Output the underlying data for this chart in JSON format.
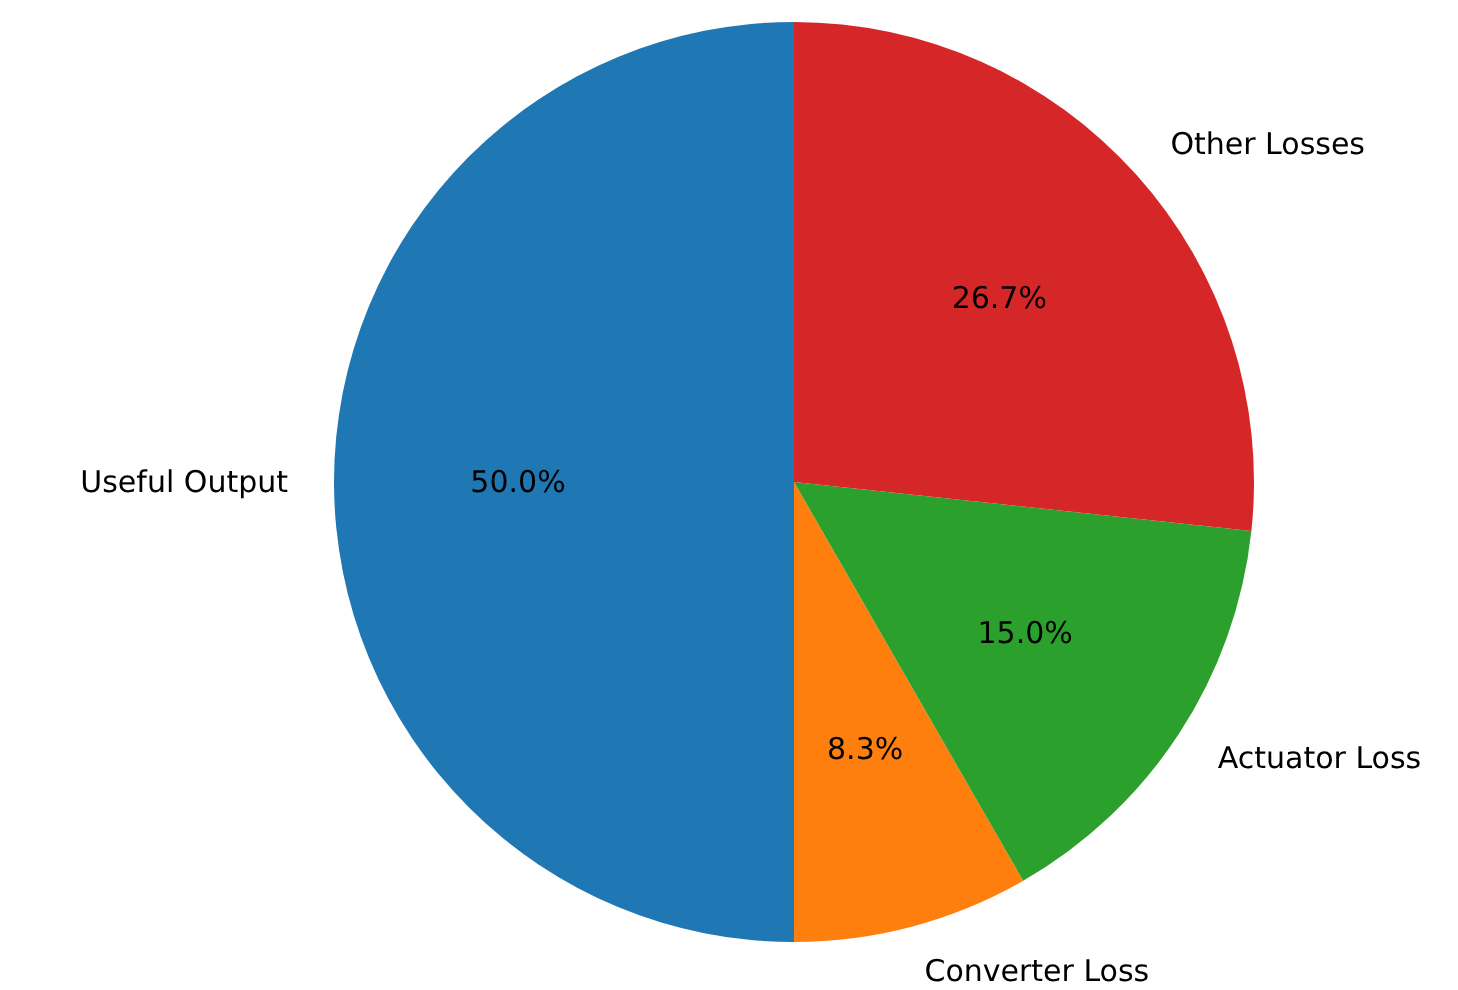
{
  "chart_data": {
    "type": "pie",
    "categories": [
      "Useful Output",
      "Converter Loss",
      "Actuator Loss",
      "Other Losses"
    ],
    "values": [
      50.0,
      8.3,
      15.0,
      26.7
    ],
    "colors": [
      "#1f77b4",
      "#ff7f0e",
      "#2ca02c",
      "#d62728"
    ],
    "value_labels": [
      "50.0%",
      "8.3%",
      "15.0%",
      "26.7%"
    ]
  }
}
